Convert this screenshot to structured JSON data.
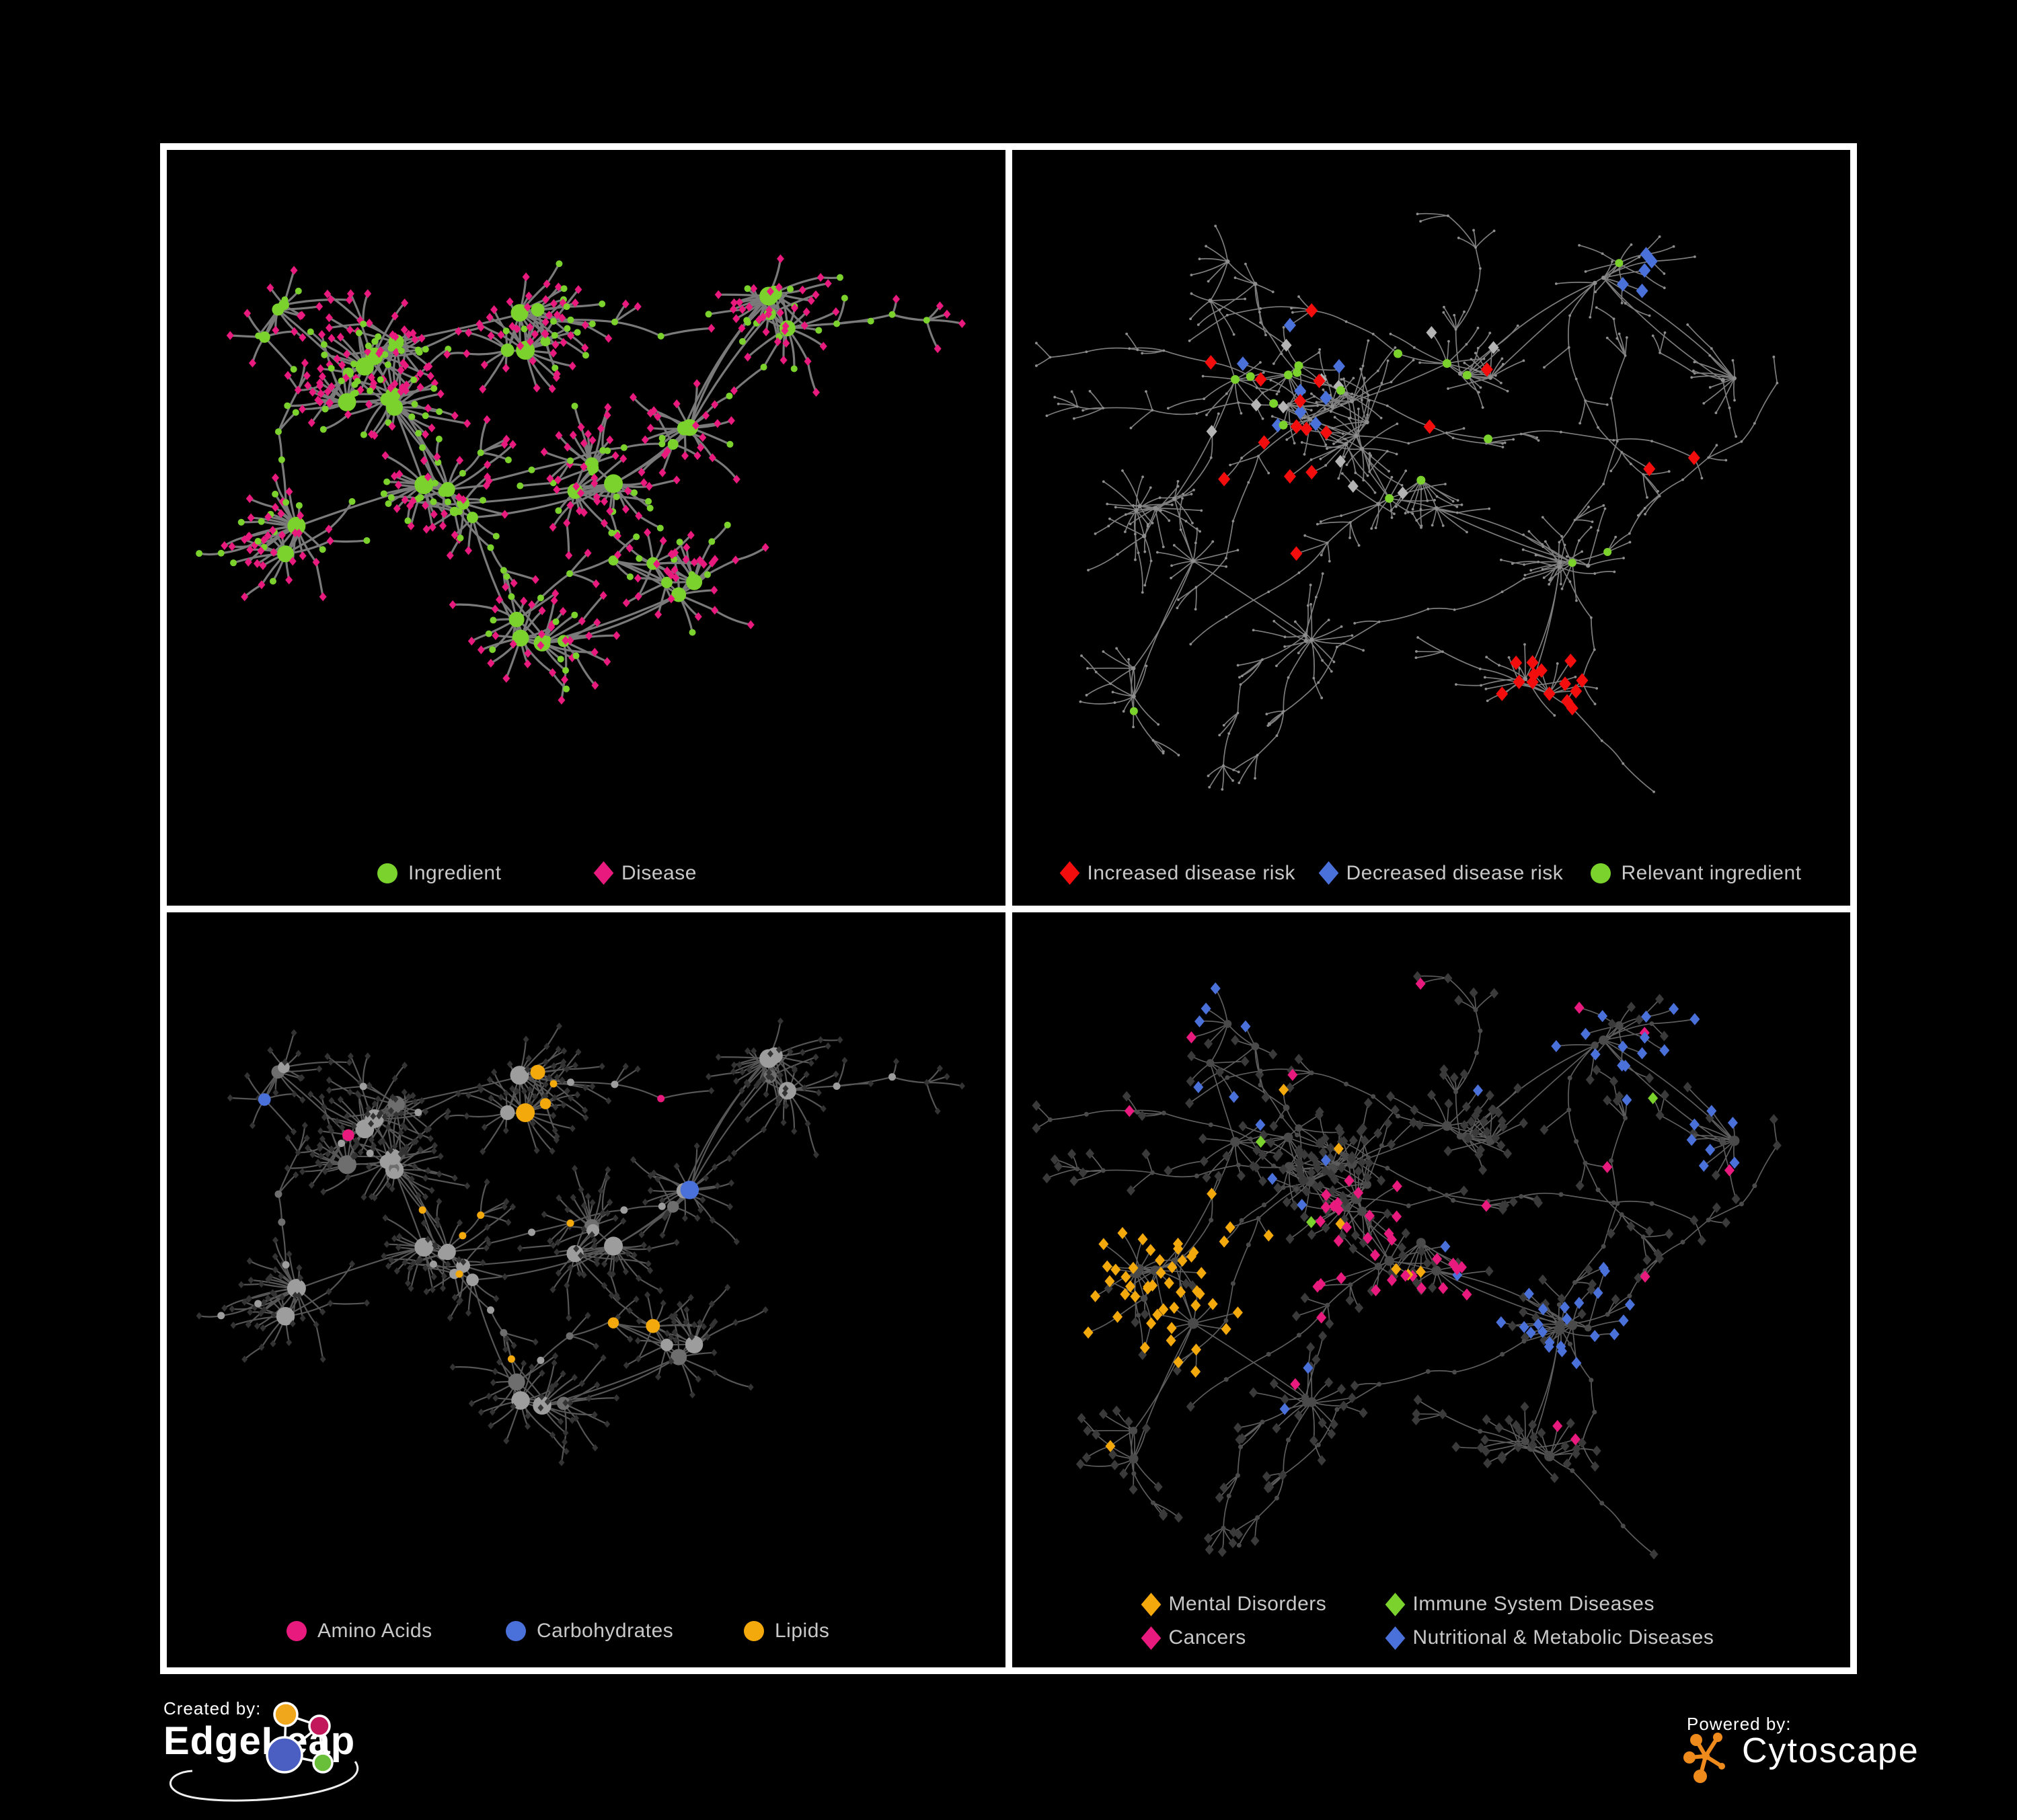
{
  "figure": {
    "background": "#000000",
    "panel_border_color": "#ffffff",
    "legend_text_color": "#c8c8c8"
  },
  "panels": [
    {
      "name": "ingredient-disease-network",
      "legend": [
        {
          "label": "Ingredient",
          "shape": "circle",
          "color": "#7bd22c"
        },
        {
          "label": "Disease",
          "shape": "diamond",
          "color": "#e81a7d"
        }
      ]
    },
    {
      "name": "disease-risk-network",
      "legend": [
        {
          "label": "Increased disease risk",
          "shape": "diamond",
          "color": "#f40d0d"
        },
        {
          "label": "Decreased disease risk",
          "shape": "diamond",
          "color": "#4a70d9"
        },
        {
          "label": "Relevant ingredient",
          "shape": "circle",
          "color": "#7bd22c"
        }
      ]
    },
    {
      "name": "macronutrient-network",
      "legend": [
        {
          "label": "Amino Acids",
          "shape": "circle",
          "color": "#e81a7d"
        },
        {
          "label": "Carbohydrates",
          "shape": "circle",
          "color": "#4a70d9"
        },
        {
          "label": "Lipids",
          "shape": "circle",
          "color": "#f3a90b"
        }
      ]
    },
    {
      "name": "disease-class-network",
      "legend": [
        {
          "label": "Mental Disorders",
          "shape": "diamond",
          "color": "#f3a90b"
        },
        {
          "label": "Immune System Diseases",
          "shape": "diamond",
          "color": "#7bd22c"
        },
        {
          "label": "Cancers",
          "shape": "diamond",
          "color": "#e81a7d"
        },
        {
          "label": "Nutritional & Metabolic Diseases",
          "shape": "diamond",
          "color": "#4a70d9"
        }
      ]
    }
  ],
  "network_style": {
    "node_colors": {
      "green": "#7bd22c",
      "pink": "#e81a7d",
      "red": "#f40d0d",
      "blue": "#4a70d9",
      "yellow": "#f3a90b",
      "gray_light": "#9d9d9d",
      "gray_mid": "#8e8e8e",
      "gray_diamond_highlight": "#b4b4b4",
      "dark_diamond": "#3a3a3a",
      "dark_circle": "#4a4a4a"
    },
    "edge_colors": {
      "panel1": "#7a7a7a",
      "panel2": "#7d7d7d",
      "panel3": "#565656",
      "panel4": "#5d5d5d"
    }
  },
  "footer": {
    "created_by_label": "Created by:",
    "created_by_name": "EdgeLeap",
    "powered_by_label": "Powered by:",
    "powered_by_name": "Cytoscape",
    "cytoscape_orange": "#ef8b1d",
    "edgeleap_node_colors": [
      "#f0a71c",
      "#c2185b",
      "#4a5fc1",
      "#6abf3a"
    ]
  }
}
